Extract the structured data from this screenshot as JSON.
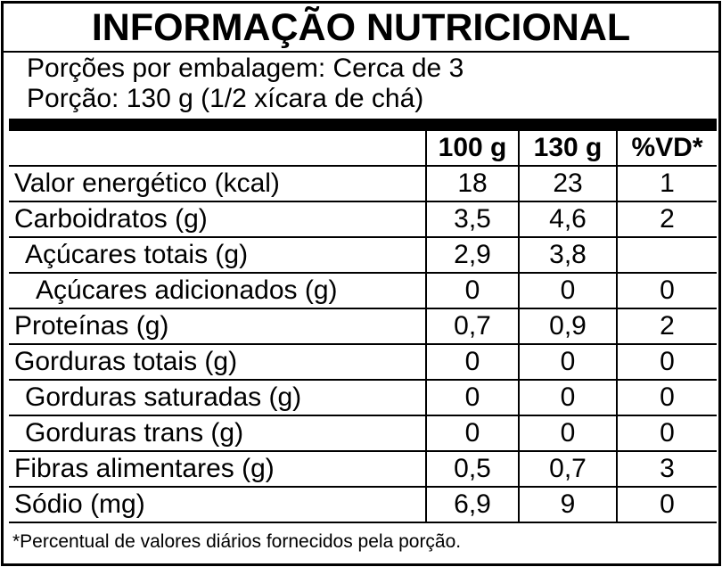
{
  "header": {
    "title": "INFORMAÇÃO NUTRICIONAL",
    "servings_per_package": "Porções por embalagem: Cerca de 3",
    "serving_size": "Porção: 130 g (1/2 xícara de chá)"
  },
  "table": {
    "columns": [
      "100 g",
      "130 g",
      "%VD*"
    ],
    "rows": [
      [
        "Valor energético (kcal)",
        "18",
        "23",
        "1"
      ],
      [
        "Carboidratos (g)",
        "3,5",
        "4,6",
        "2"
      ],
      [
        "Açúcares totais (g)",
        "2,9",
        "3,8",
        null
      ],
      [
        "Açúcares adicionados (g)",
        "0",
        "0",
        "0"
      ],
      [
        "Proteínas (g)",
        "0,7",
        "0,9",
        "2"
      ],
      [
        "Gorduras totais (g)",
        "0",
        "0",
        "0"
      ],
      [
        "Gorduras saturadas (g)",
        "0",
        "0",
        "0"
      ],
      [
        "Gorduras trans (g)",
        "0",
        "0",
        "0"
      ],
      [
        "Fibras alimentares (g)",
        "0,5",
        "0,7",
        "3"
      ],
      [
        "Sódio (mg)",
        "6,9",
        "9",
        "0"
      ]
    ]
  },
  "footnote": "*Percentual de valores diários fornecidos pela porção."
}
